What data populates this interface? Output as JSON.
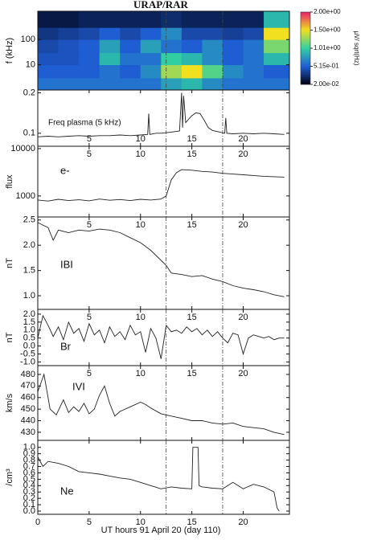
{
  "chart_data": [
    {
      "type": "heatmap",
      "title": "URAP/RAR",
      "ylabel": "f (kHz)",
      "ylog": true,
      "xlim": [
        0,
        24.5
      ],
      "ylim": [
        1,
        1330
      ],
      "yticks": [
        100,
        10
      ],
      "x_bins": [
        0,
        2,
        4,
        6,
        8,
        10,
        12,
        14,
        16,
        18,
        20,
        22,
        24.5
      ],
      "y_bins": [
        1,
        3,
        10,
        30,
        100,
        300,
        1330
      ],
      "z": [
        [
          0.6,
          0.6,
          0.6,
          0.6,
          0.6,
          0.6,
          0.8,
          0.9,
          0.7,
          0.6,
          0.6,
          0.6
        ],
        [
          0.5,
          0.5,
          0.5,
          0.6,
          0.5,
          0.7,
          1.3,
          1.5,
          1.1,
          0.7,
          0.6,
          0.5
        ],
        [
          0.45,
          0.45,
          0.5,
          0.9,
          0.6,
          0.6,
          1.0,
          0.9,
          0.7,
          0.5,
          0.6,
          0.9
        ],
        [
          0.4,
          0.45,
          0.5,
          0.8,
          0.5,
          0.8,
          0.6,
          0.5,
          0.7,
          0.5,
          0.6,
          1.2
        ],
        [
          0.3,
          0.35,
          0.4,
          0.5,
          0.4,
          0.5,
          0.7,
          0.4,
          0.4,
          0.35,
          0.4,
          1.5
        ],
        [
          0.15,
          0.15,
          0.2,
          0.2,
          0.2,
          0.2,
          0.25,
          0.2,
          0.2,
          0.2,
          0.2,
          0.9
        ]
      ],
      "colorbar_label": "μV/ sqrt(Hz)",
      "colorbar_ticks": [
        {
          "value": 2.0,
          "label": "2.00e+00"
        },
        {
          "value": 1.5,
          "label": "1.50e+00"
        },
        {
          "value": 1.01,
          "label": "1.01e+00"
        },
        {
          "value": 0.515,
          "label": "5.15e-01"
        },
        {
          "value": 0.02,
          "label": "2.00e-02"
        }
      ],
      "colorscale": [
        "#e8206a",
        "#f0e020",
        "#30d0a0",
        "#2060d8",
        "#000010"
      ],
      "vlines": [
        12.5,
        18
      ]
    },
    {
      "type": "line",
      "annotation": "Freq plasma (5 kHz)",
      "ylog": true,
      "xtick_labels": "bottom-inside",
      "xlim": [
        0,
        24.5
      ],
      "ylim": [
        0.08,
        0.21
      ],
      "yticks": [
        0.2,
        0.1
      ],
      "xticks": [
        5,
        10,
        15,
        20
      ],
      "vlines": [
        12.5,
        18
      ],
      "color": "#222222",
      "x": [
        0,
        1,
        2,
        3,
        4,
        5,
        6,
        7,
        8,
        9,
        10,
        10.7,
        10.8,
        10.9,
        11.5,
        12,
        13,
        13.8,
        14.0,
        14.1,
        14.2,
        14.4,
        14.6,
        15,
        15.4,
        15.8,
        16.2,
        16.6,
        17,
        18.2,
        18.3,
        18.4,
        19,
        20,
        21,
        22,
        23,
        24
      ],
      "values": [
        0.094,
        0.095,
        0.094,
        0.095,
        0.096,
        0.095,
        0.096,
        0.096,
        0.097,
        0.096,
        0.097,
        0.098,
        0.14,
        0.098,
        0.1,
        0.1,
        0.102,
        0.104,
        0.2,
        0.11,
        0.19,
        0.12,
        0.125,
        0.135,
        0.142,
        0.14,
        0.125,
        0.11,
        0.105,
        0.1,
        0.13,
        0.1,
        0.099,
        0.1,
        0.099,
        0.1,
        0.099,
        0.098
      ]
    },
    {
      "type": "line",
      "ylabel": "flux",
      "annotation": "e-",
      "ylog": true,
      "xtick_labels": "top-inside",
      "xlim": [
        0,
        24.5
      ],
      "ylim": [
        360,
        11200
      ],
      "yticks": [
        10000,
        1000
      ],
      "xticks": [
        5,
        10,
        15,
        20
      ],
      "vlines": [
        12.5,
        18
      ],
      "color": "#222222",
      "x": [
        0,
        1,
        2,
        3,
        4,
        5,
        6,
        7,
        8,
        9,
        10,
        11,
        12,
        12.5,
        13,
        13.5,
        14,
        15,
        16,
        17,
        18,
        19,
        20,
        21,
        22,
        23,
        24
      ],
      "values": [
        820,
        780,
        850,
        800,
        830,
        790,
        860,
        810,
        840,
        800,
        850,
        820,
        860,
        1000,
        2200,
        3100,
        3600,
        3500,
        3300,
        3200,
        3000,
        2900,
        2800,
        2700,
        2600,
        2550,
        2500
      ]
    },
    {
      "type": "line",
      "ylabel": "nT",
      "annotation": "IBI",
      "xtick_labels": "top-inside",
      "xlim": [
        0,
        24.5
      ],
      "ylim": [
        0.73,
        2.56
      ],
      "yticks": [
        {
          "value": 2.5,
          "label": "2.5"
        },
        {
          "value": 2,
          "label": "2.0"
        },
        1.5,
        {
          "value": 1,
          "label": "1.0"
        }
      ],
      "xticks": [
        5,
        10,
        15,
        20
      ],
      "vlines": [
        12.5,
        18
      ],
      "color": "#222222",
      "x": [
        0,
        0.5,
        1,
        1.5,
        2,
        3,
        4,
        5,
        6,
        7,
        8,
        9,
        10,
        11,
        12,
        12.5,
        13,
        14,
        15,
        16,
        17,
        18,
        19,
        20,
        21,
        22,
        23,
        24
      ],
      "values": [
        2.45,
        2.4,
        2.35,
        2.1,
        2.3,
        2.25,
        2.3,
        2.28,
        2.32,
        2.3,
        2.25,
        2.15,
        2.05,
        1.9,
        1.7,
        1.6,
        1.45,
        1.42,
        1.38,
        1.4,
        1.33,
        1.28,
        1.2,
        1.15,
        1.12,
        1.08,
        1.02,
        0.98
      ]
    },
    {
      "type": "line",
      "ylabel": "nT",
      "annotation": "Br",
      "xtick_labels": "top-inside",
      "xlim": [
        0,
        24.5
      ],
      "ylim": [
        -1.23,
        2.3
      ],
      "yticks": [
        {
          "value": 2,
          "label": "2.0"
        },
        1.5,
        {
          "value": 1,
          "label": "1.0"
        },
        0.5,
        {
          "value": 0,
          "label": "0.0"
        },
        -0.5,
        {
          "value": -1,
          "label": "-1.0"
        }
      ],
      "xticks": [
        5,
        10,
        15,
        20
      ],
      "vlines": [
        12.5,
        18
      ],
      "color": "#222222",
      "x": [
        0,
        0.5,
        1,
        1.5,
        2,
        2.5,
        3,
        3.5,
        4,
        4.5,
        5,
        5.5,
        6,
        6.5,
        7,
        7.5,
        8,
        8.5,
        9,
        9.5,
        10,
        10.5,
        11,
        11.5,
        12,
        12.5,
        13,
        13.5,
        14,
        14.5,
        15,
        15.5,
        16,
        16.5,
        17,
        17.5,
        18,
        18.5,
        19,
        19.5,
        20,
        20.5,
        21,
        21.5,
        22,
        22.5,
        23,
        23.5,
        24
      ],
      "values": [
        0.5,
        1.9,
        1.3,
        0.6,
        1.2,
        0.4,
        1.5,
        0.8,
        1.1,
        0.3,
        1.4,
        0.7,
        1.0,
        0.2,
        1.2,
        0.6,
        0.9,
        0.4,
        1.3,
        0.7,
        0.9,
        -0.4,
        1.1,
        0.5,
        -0.8,
        1.3,
        0.9,
        1.0,
        0.8,
        1.2,
        0.9,
        1.1,
        0.7,
        1.0,
        0.6,
        0.9,
        0.5,
        0.2,
        0.8,
        0.7,
        -0.5,
        0.5,
        0.7,
        0.6,
        0.5,
        0.6,
        0.4,
        0.5,
        0.5
      ]
    },
    {
      "type": "line",
      "ylabel": "km/s",
      "annotation": "IVI",
      "xtick_labels": "top-inside",
      "xlim": [
        0,
        24.5
      ],
      "ylim": [
        423,
        487.6
      ],
      "yticks": [
        480,
        470,
        460,
        450,
        440,
        430
      ],
      "xticks": [
        5,
        10,
        15,
        20
      ],
      "vlines": [
        12.5,
        18
      ],
      "color": "#222222",
      "x": [
        0,
        0.6,
        1.2,
        1.8,
        2.5,
        3,
        3.5,
        4,
        4.5,
        5,
        5.5,
        6,
        6.5,
        7,
        7.5,
        8,
        9,
        10,
        10.5,
        11,
        12,
        13,
        14,
        15,
        16,
        17,
        18,
        19,
        20,
        21,
        22,
        23,
        24
      ],
      "values": [
        465,
        480,
        450,
        445,
        458,
        447,
        452,
        448,
        455,
        446,
        450,
        462,
        470,
        455,
        444,
        448,
        452,
        456,
        454,
        451,
        446,
        444,
        442,
        440,
        440,
        438,
        437,
        438,
        435,
        434,
        433,
        430,
        428
      ]
    },
    {
      "type": "line",
      "ylabel": "/cm³",
      "annotation": "Ne",
      "xtick_labels": "bottom",
      "xlabel": "UT hours 91 April 20 (day 110)",
      "xlim": [
        0,
        24.5
      ],
      "ylim": [
        -0.05,
        1.11
      ],
      "yticks": [
        {
          "value": 1,
          "label": "1.0"
        },
        0.9,
        0.8,
        0.7,
        0.6,
        0.5,
        0.4,
        0.3,
        0.2,
        0.1,
        {
          "value": 0,
          "label": "0.0"
        }
      ],
      "xticks": [
        0,
        5,
        10,
        15,
        20
      ],
      "vlines": [
        12.5,
        18
      ],
      "color": "#222222",
      "x": [
        0,
        0.5,
        1,
        2,
        3,
        4,
        5,
        6,
        7,
        8,
        9,
        10,
        11,
        12,
        13,
        14,
        15,
        15.1,
        15.6,
        15.7,
        16,
        17,
        18,
        19,
        20,
        21,
        22,
        23,
        23.3,
        23.5
      ],
      "values": [
        0.85,
        0.7,
        0.78,
        0.75,
        0.7,
        0.62,
        0.6,
        0.58,
        0.55,
        0.52,
        0.5,
        0.45,
        0.4,
        0.35,
        0.38,
        0.36,
        0.35,
        1.0,
        1.0,
        0.4,
        0.38,
        0.36,
        0.35,
        0.45,
        0.35,
        0.42,
        0.38,
        0.3,
        0.05,
        0.0
      ]
    }
  ]
}
